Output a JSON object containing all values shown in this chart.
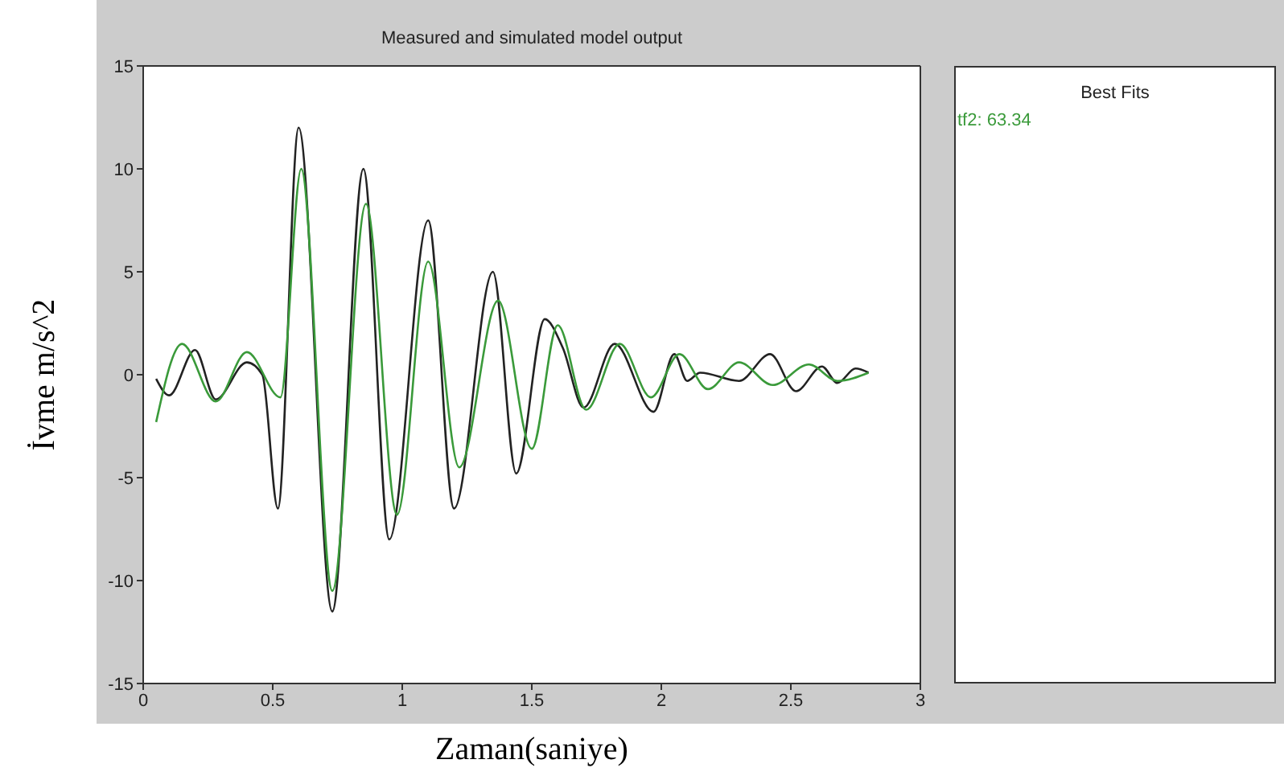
{
  "chart_data": [
    {
      "type": "line",
      "title": "Measured and simulated model output",
      "xlabel": "Zaman(saniye)",
      "ylabel": "İvme m/s^2",
      "xlim": [
        0,
        3
      ],
      "xticks": [
        0,
        0.5,
        1,
        1.5,
        2,
        2.5,
        3
      ],
      "ylim": [
        -15,
        15
      ],
      "yticks": [
        -15,
        -10,
        -5,
        0,
        5,
        10,
        15
      ],
      "series": [
        {
          "color": "#222222",
          "x": [
            0.05,
            0.1,
            0.2,
            0.28,
            0.4,
            0.46,
            0.52,
            0.6,
            0.73,
            0.85,
            0.95,
            1.1,
            1.2,
            1.35,
            1.44,
            1.55,
            1.62,
            1.7,
            1.82,
            1.97,
            2.05,
            2.1,
            2.15,
            2.3,
            2.42,
            2.52,
            2.62,
            2.68,
            2.75,
            2.8
          ],
          "values": [
            -0.2,
            -1,
            1.2,
            -1.2,
            0.6,
            0,
            -6.5,
            12,
            -11.5,
            10,
            -8,
            7.5,
            -6.5,
            5,
            -4.8,
            2.7,
            1.3,
            -1.6,
            1.5,
            -1.8,
            1,
            -0.3,
            0.1,
            -0.3,
            1,
            -0.8,
            0.4,
            -0.4,
            0.3,
            0.1
          ]
        },
        {
          "color": "#3a9a3a",
          "x": [
            0.05,
            0.15,
            0.28,
            0.4,
            0.53,
            0.61,
            0.73,
            0.86,
            0.98,
            1.1,
            1.22,
            1.37,
            1.5,
            1.6,
            1.71,
            1.84,
            1.96,
            2.07,
            2.18,
            2.3,
            2.43,
            2.57,
            2.68,
            2.8
          ],
          "values": [
            -2.3,
            1.5,
            -1.3,
            1.1,
            -1.1,
            10,
            -10.5,
            8.3,
            -6.8,
            5.5,
            -4.5,
            3.6,
            -3.6,
            2.4,
            -1.7,
            1.5,
            -1.1,
            1,
            -0.7,
            0.6,
            -0.5,
            0.5,
            -0.3,
            0.1
          ]
        }
      ]
    },
    {
      "type": "other",
      "title": "Best Fits",
      "annotations": [
        "tf2: 63.34"
      ]
    }
  ]
}
